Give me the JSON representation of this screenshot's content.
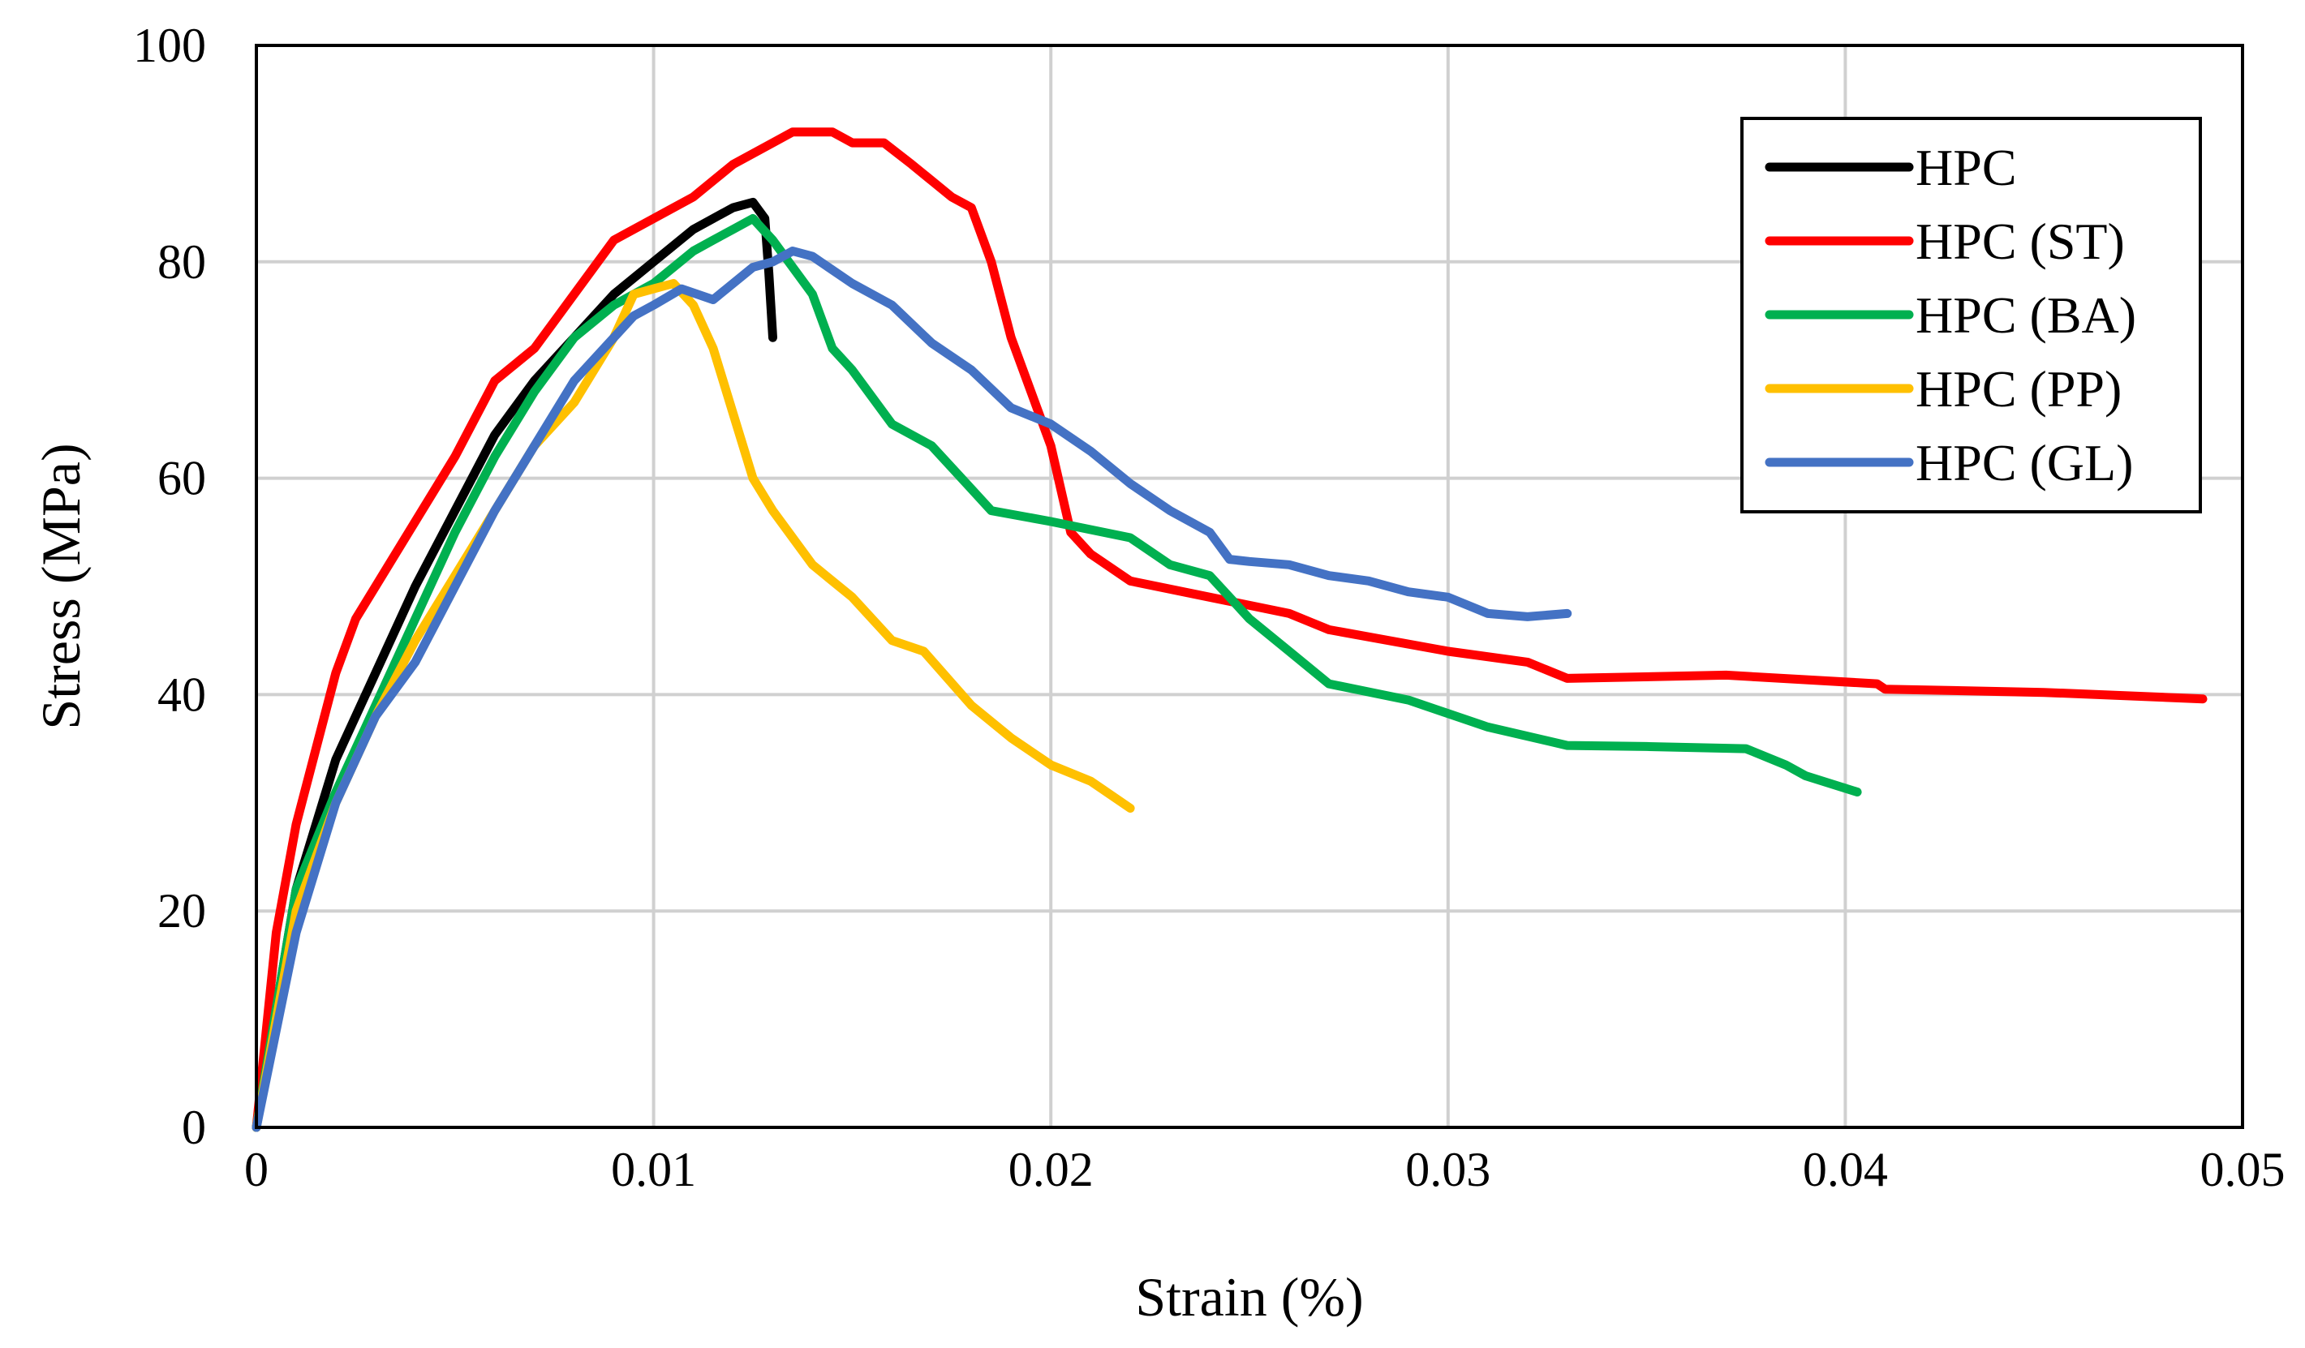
{
  "chart_data": {
    "type": "line",
    "title": "",
    "xlabel": "Strain (%)",
    "ylabel": "Stress (MPa)",
    "xlim": [
      0,
      0.05
    ],
    "ylim": [
      0,
      100
    ],
    "x_ticks": [
      0,
      0.01,
      0.02,
      0.03,
      0.04,
      0.05
    ],
    "x_tick_labels": [
      "0",
      "0.01",
      "0.02",
      "0.03",
      "0.04",
      "0.05"
    ],
    "y_ticks": [
      0,
      20,
      40,
      60,
      80,
      100
    ],
    "y_tick_labels": [
      "0",
      "20",
      "40",
      "60",
      "80",
      "100"
    ],
    "grid": true,
    "legend_position": "top-right",
    "series": [
      {
        "name": "HPC",
        "color": "#000000",
        "points": [
          [
            0,
            0
          ],
          [
            0.001,
            22
          ],
          [
            0.002,
            34
          ],
          [
            0.003,
            42
          ],
          [
            0.004,
            50
          ],
          [
            0.005,
            57
          ],
          [
            0.006,
            64
          ],
          [
            0.007,
            69
          ],
          [
            0.008,
            73
          ],
          [
            0.009,
            77
          ],
          [
            0.01,
            80
          ],
          [
            0.011,
            83
          ],
          [
            0.0115,
            84
          ],
          [
            0.012,
            85
          ],
          [
            0.0125,
            85.5
          ],
          [
            0.0128,
            84
          ],
          [
            0.0129,
            79
          ],
          [
            0.013,
            73
          ]
        ]
      },
      {
        "name": "HPC (ST)",
        "color": "#ff0000",
        "points": [
          [
            0,
            0
          ],
          [
            0.0005,
            18
          ],
          [
            0.001,
            28
          ],
          [
            0.002,
            42
          ],
          [
            0.0025,
            47
          ],
          [
            0.003,
            50
          ],
          [
            0.004,
            56
          ],
          [
            0.005,
            62
          ],
          [
            0.006,
            69
          ],
          [
            0.007,
            72
          ],
          [
            0.008,
            77
          ],
          [
            0.009,
            82
          ],
          [
            0.01,
            84
          ],
          [
            0.011,
            86
          ],
          [
            0.012,
            89
          ],
          [
            0.013,
            91
          ],
          [
            0.0135,
            92
          ],
          [
            0.0145,
            92
          ],
          [
            0.015,
            91
          ],
          [
            0.0158,
            91
          ],
          [
            0.0165,
            89
          ],
          [
            0.0175,
            86
          ],
          [
            0.018,
            85
          ],
          [
            0.0185,
            80
          ],
          [
            0.019,
            73
          ],
          [
            0.0195,
            68
          ],
          [
            0.02,
            63
          ],
          [
            0.0205,
            55
          ],
          [
            0.021,
            53
          ],
          [
            0.022,
            50.5
          ],
          [
            0.024,
            49
          ],
          [
            0.026,
            47.5
          ],
          [
            0.027,
            46
          ],
          [
            0.03,
            44
          ],
          [
            0.032,
            43
          ],
          [
            0.033,
            41.5
          ],
          [
            0.037,
            41.8
          ],
          [
            0.0408,
            41
          ],
          [
            0.041,
            40.5
          ],
          [
            0.045,
            40.2
          ],
          [
            0.049,
            39.6
          ]
        ]
      },
      {
        "name": "HPC (BA)",
        "color": "#00b050",
        "points": [
          [
            0,
            0
          ],
          [
            0.001,
            22
          ],
          [
            0.002,
            31
          ],
          [
            0.003,
            39
          ],
          [
            0.004,
            47
          ],
          [
            0.005,
            55
          ],
          [
            0.006,
            62
          ],
          [
            0.007,
            68
          ],
          [
            0.008,
            73
          ],
          [
            0.009,
            76
          ],
          [
            0.01,
            78
          ],
          [
            0.011,
            81
          ],
          [
            0.0115,
            82
          ],
          [
            0.012,
            83
          ],
          [
            0.0125,
            84
          ],
          [
            0.013,
            82
          ],
          [
            0.014,
            77
          ],
          [
            0.0145,
            72
          ],
          [
            0.015,
            70
          ],
          [
            0.016,
            65
          ],
          [
            0.017,
            63
          ],
          [
            0.018,
            59
          ],
          [
            0.0185,
            57
          ],
          [
            0.02,
            56
          ],
          [
            0.022,
            54.5
          ],
          [
            0.023,
            52
          ],
          [
            0.024,
            51
          ],
          [
            0.025,
            47
          ],
          [
            0.026,
            44
          ],
          [
            0.027,
            41
          ],
          [
            0.029,
            39.5
          ],
          [
            0.031,
            37
          ],
          [
            0.033,
            35.3
          ],
          [
            0.035,
            35.2
          ],
          [
            0.0375,
            35
          ],
          [
            0.0385,
            33.5
          ],
          [
            0.039,
            32.5
          ],
          [
            0.0403,
            31
          ]
        ]
      },
      {
        "name": "HPC (PP)",
        "color": "#ffc000",
        "points": [
          [
            0,
            0
          ],
          [
            0.001,
            20
          ],
          [
            0.002,
            30
          ],
          [
            0.003,
            38
          ],
          [
            0.004,
            45
          ],
          [
            0.005,
            51
          ],
          [
            0.006,
            57
          ],
          [
            0.007,
            63
          ],
          [
            0.008,
            67
          ],
          [
            0.009,
            73
          ],
          [
            0.0095,
            77
          ],
          [
            0.01,
            77.5
          ],
          [
            0.0105,
            78
          ],
          [
            0.011,
            76
          ],
          [
            0.0115,
            72
          ],
          [
            0.012,
            66
          ],
          [
            0.0125,
            60
          ],
          [
            0.013,
            57
          ],
          [
            0.014,
            52
          ],
          [
            0.015,
            49
          ],
          [
            0.016,
            45
          ],
          [
            0.0168,
            44
          ],
          [
            0.018,
            39
          ],
          [
            0.019,
            36
          ],
          [
            0.02,
            33.5
          ],
          [
            0.021,
            32
          ],
          [
            0.022,
            29.5
          ]
        ]
      },
      {
        "name": "HPC (GL)",
        "color": "#4472c4",
        "points": [
          [
            0,
            0
          ],
          [
            0.001,
            18
          ],
          [
            0.002,
            30
          ],
          [
            0.003,
            38
          ],
          [
            0.004,
            43
          ],
          [
            0.005,
            50
          ],
          [
            0.006,
            57
          ],
          [
            0.007,
            63
          ],
          [
            0.008,
            69
          ],
          [
            0.009,
            73
          ],
          [
            0.0095,
            75
          ],
          [
            0.01,
            76
          ],
          [
            0.0107,
            77.5
          ],
          [
            0.0115,
            76.5
          ],
          [
            0.012,
            78
          ],
          [
            0.0125,
            79.5
          ],
          [
            0.013,
            80
          ],
          [
            0.0135,
            81
          ],
          [
            0.014,
            80.5
          ],
          [
            0.015,
            78
          ],
          [
            0.016,
            76
          ],
          [
            0.017,
            72.5
          ],
          [
            0.018,
            70
          ],
          [
            0.019,
            66.5
          ],
          [
            0.02,
            65
          ],
          [
            0.021,
            62.5
          ],
          [
            0.022,
            59.5
          ],
          [
            0.023,
            57
          ],
          [
            0.024,
            55
          ],
          [
            0.0245,
            52.5
          ],
          [
            0.025,
            52.3
          ],
          [
            0.026,
            52
          ],
          [
            0.027,
            51
          ],
          [
            0.028,
            50.5
          ],
          [
            0.029,
            49.5
          ],
          [
            0.03,
            49
          ],
          [
            0.031,
            47.5
          ],
          [
            0.032,
            47.2
          ],
          [
            0.033,
            47.5
          ]
        ]
      }
    ]
  }
}
